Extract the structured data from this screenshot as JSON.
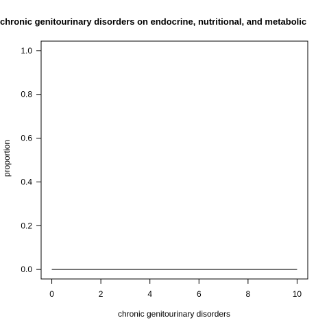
{
  "chart_data": {
    "type": "line",
    "title": "chronic genitourinary disorders on endocrine, nutritional, and metabolic",
    "xlabel": "chronic genitourinary disorders",
    "ylabel": "proportion",
    "x": [
      0,
      1,
      2,
      3,
      4,
      5,
      6,
      7,
      8,
      9,
      10
    ],
    "series": [
      {
        "name": "proportion",
        "values": [
          0,
          0,
          0,
          0,
          0,
          0,
          0,
          0,
          0,
          0,
          0
        ]
      }
    ],
    "xlim": [
      0,
      10
    ],
    "ylim": [
      0,
      1
    ],
    "xticks": [
      0,
      2,
      4,
      6,
      8,
      10
    ],
    "yticks": [
      0.0,
      0.2,
      0.4,
      0.6,
      0.8,
      1.0
    ],
    "ytick_labels": [
      "0.0",
      "0.2",
      "0.4",
      "0.6",
      "0.8",
      "1.0"
    ],
    "grid": false,
    "colors": {
      "line": "#000000",
      "axis": "#000000",
      "background": "#ffffff"
    }
  }
}
